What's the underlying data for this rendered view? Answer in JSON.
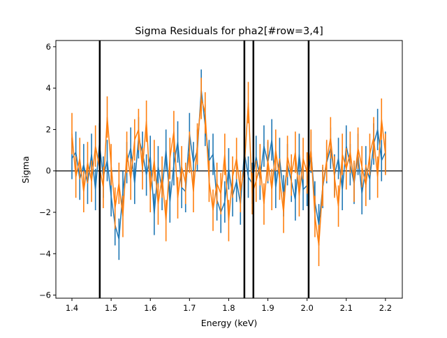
{
  "chart_data": {
    "type": "line",
    "title": "Sigma Residuals for pha2[#row=3,4]",
    "xlabel": "Energy (keV)",
    "ylabel": "Sigma",
    "xlim": [
      1.359,
      2.243
    ],
    "ylim": [
      -6.15,
      6.3
    ],
    "xticks": [
      "1.4",
      "1.5",
      "1.6",
      "1.7",
      "1.8",
      "1.9",
      "2.0",
      "2.1",
      "2.2"
    ],
    "yticks": [
      "−6",
      "−4",
      "−2",
      "0",
      "2",
      "4",
      "6"
    ],
    "grid": false,
    "error_bars": "±1 sigma",
    "x": [
      1.4,
      1.41,
      1.42,
      1.43,
      1.44,
      1.45,
      1.46,
      1.47,
      1.48,
      1.49,
      1.5,
      1.51,
      1.52,
      1.53,
      1.54,
      1.55,
      1.56,
      1.57,
      1.58,
      1.59,
      1.6,
      1.61,
      1.62,
      1.63,
      1.64,
      1.65,
      1.66,
      1.67,
      1.68,
      1.69,
      1.7,
      1.71,
      1.72,
      1.73,
      1.74,
      1.75,
      1.76,
      1.77,
      1.78,
      1.79,
      1.8,
      1.81,
      1.82,
      1.83,
      1.84,
      1.85,
      1.86,
      1.87,
      1.88,
      1.89,
      1.9,
      1.91,
      1.92,
      1.93,
      1.94,
      1.95,
      1.96,
      1.97,
      1.98,
      1.99,
      2.0,
      2.01,
      2.02,
      2.03,
      2.04,
      2.05,
      2.06,
      2.07,
      2.08,
      2.09,
      2.1,
      2.11,
      2.12,
      2.13,
      2.14,
      2.15,
      2.16,
      2.17,
      2.18,
      2.19,
      2.2
    ],
    "series": [
      {
        "color": "#1f77b4",
        "values": [
          0.6,
          0.9,
          -0.4,
          0.3,
          -0.6,
          0.8,
          -0.9,
          1.3,
          -0.3,
          0.5,
          -1.2,
          -2.6,
          -3.3,
          -1.0,
          0.4,
          1.1,
          -0.6,
          1.6,
          0.9,
          -0.2,
          0.7,
          -2.1,
          0.2,
          -0.9,
          1.0,
          -1.5,
          0.3,
          1.4,
          -0.8,
          -1.0,
          1.8,
          0.4,
          1.0,
          3.9,
          2.2,
          0.5,
          0.8,
          -1.4,
          -2.0,
          -1.5,
          0.1,
          -1.2,
          -0.5,
          -1.6,
          0.9,
          -0.3,
          -0.6,
          0.7,
          -0.4,
          1.2,
          0.4,
          1.5,
          -0.8,
          0.6,
          -1.2,
          0.3,
          -0.5,
          -1.4,
          0.8,
          -0.9,
          -0.7,
          0.9,
          -1.5,
          -2.6,
          -0.8,
          0.4,
          1.1,
          -0.2,
          0.6,
          -0.9,
          1.2,
          0.3,
          -0.6,
          0.8,
          -1.1,
          0.2,
          -0.4,
          1.3,
          2.0,
          0.5,
          0.9
        ]
      },
      {
        "color": "#ff7f0e",
        "values": [
          1.8,
          -0.3,
          0.6,
          -1.0,
          0.4,
          -0.5,
          1.2,
          0.2,
          -0.8,
          2.6,
          0.3,
          -1.8,
          -0.6,
          -2.2,
          0.9,
          -0.4,
          1.5,
          2.0,
          0.1,
          2.4,
          -1.0,
          0.5,
          -1.6,
          -0.3,
          -2.4,
          0.6,
          1.9,
          -1.3,
          0.2,
          -0.6,
          0.9,
          -1.0,
          1.3,
          3.5,
          2.8,
          -0.5,
          -1.9,
          -0.6,
          -1.1,
          0.8,
          -2.4,
          -0.3,
          0.6,
          -1.0,
          0.2,
          3.3,
          -1.1,
          -0.5,
          0.3,
          -1.6,
          0.5,
          -0.9,
          1.0,
          -0.4,
          -2.0,
          0.7,
          -0.2,
          0.9,
          -1.2,
          0.6,
          -0.1,
          1.0,
          -2.2,
          -3.6,
          -0.7,
          0.5,
          1.6,
          -0.3,
          -1.7,
          0.8,
          0.1,
          0.9,
          -0.5,
          1.1,
          0.2,
          -0.7,
          0.8,
          1.6,
          -0.3,
          2.5,
          0.8
        ]
      }
    ],
    "vertical_lines": [
      1.471,
      1.84,
      1.863,
      2.004
    ],
    "horizontal_lines": [
      0
    ]
  }
}
